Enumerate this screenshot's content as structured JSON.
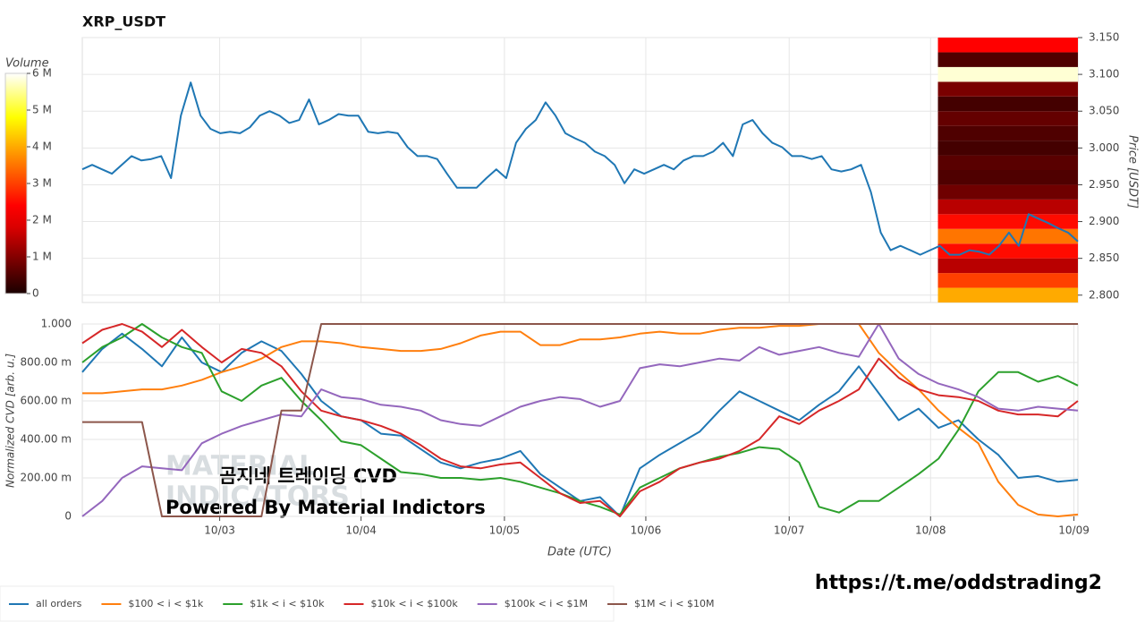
{
  "chart_data": [
    {
      "type": "line",
      "title": "XRP_USDT",
      "ylabel": "Price [USDT]",
      "color": "#1f77b4",
      "values": [
        2.971,
        2.977,
        2.971,
        2.965,
        2.977,
        2.989,
        2.983,
        2.985,
        2.989,
        2.959,
        3.044,
        3.089,
        3.044,
        3.026,
        3.02,
        3.022,
        3.02,
        3.028,
        3.044,
        3.05,
        3.044,
        3.034,
        3.038,
        3.066,
        3.032,
        3.038,
        3.046,
        3.044,
        3.044,
        3.022,
        3.02,
        3.022,
        3.02,
        3.001,
        2.989,
        2.989,
        2.985,
        2.965,
        2.946,
        2.946,
        2.946,
        2.959,
        2.971,
        2.959,
        3.007,
        3.026,
        3.038,
        3.062,
        3.044,
        3.02,
        3.013,
        3.007,
        2.995,
        2.989,
        2.977,
        2.952,
        2.971,
        2.965,
        2.971,
        2.977,
        2.971,
        2.983,
        2.989,
        2.989,
        2.995,
        3.007,
        2.989,
        3.032,
        3.038,
        3.02,
        3.007,
        3.001,
        2.989,
        2.989,
        2.985,
        2.989,
        2.971,
        2.968,
        2.971,
        2.977,
        2.94,
        2.885,
        2.861,
        2.867,
        2.861,
        2.855,
        2.861,
        2.867,
        2.855,
        2.855,
        2.861,
        2.859,
        2.855,
        2.867,
        2.885,
        2.867,
        2.91,
        2.904,
        2.898,
        2.891,
        2.885,
        2.873
      ],
      "xlim": [
        0,
        101
      ],
      "ylim": [
        2.79,
        3.15
      ],
      "yticks": [
        {
          "value": 2.8,
          "label": "2.800"
        },
        {
          "value": 2.85,
          "label": "2.850"
        },
        {
          "value": 2.9,
          "label": "2.900"
        },
        {
          "value": 2.95,
          "label": "2.950"
        },
        {
          "value": 3.0,
          "label": "3.000"
        },
        {
          "value": 3.05,
          "label": "3.050"
        },
        {
          "value": 3.1,
          "label": "3.100"
        },
        {
          "value": 3.15,
          "label": "3.150"
        }
      ],
      "grid": true,
      "volume_profile": {
        "title": "Volume",
        "xlim": [
          86.8,
          101
        ],
        "bins": [
          2.79,
          2.81,
          2.83,
          2.85,
          2.87,
          2.89,
          2.91,
          2.93,
          2.95,
          2.97,
          2.99,
          3.01,
          3.03,
          3.05,
          3.07,
          3.09,
          3.11,
          3.13,
          3.15
        ],
        "values": [
          4000000,
          3000000,
          1500000,
          2500000,
          3500000,
          2500000,
          1500000,
          800000,
          500000,
          600000,
          400000,
          500000,
          700000,
          400000,
          900000,
          5800000,
          500000,
          2300000
        ],
        "clim": [
          0,
          6000000
        ],
        "ticks": [
          0,
          {
            "value": 1000000,
            "label": "1 M"
          },
          {
            "value": 2000000,
            "label": "2 M"
          },
          {
            "value": 3000000,
            "label": "3 M"
          },
          {
            "value": 4000000,
            "label": "4 M"
          },
          {
            "value": 5000000,
            "label": "5 M"
          },
          {
            "value": 6000000,
            "label": "6 M"
          }
        ]
      }
    },
    {
      "type": "line",
      "xlabel": "Date (UTC)",
      "ylabel": "Normalized CVD [arb. u.]",
      "xlim": [
        0,
        50
      ],
      "ylim": [
        0,
        1
      ],
      "xticks": [
        {
          "value": 6.9,
          "label": "10/03"
        },
        {
          "value": 14.0,
          "label": "10/04"
        },
        {
          "value": 21.2,
          "label": "10/05"
        },
        {
          "value": 28.3,
          "label": "10/06"
        },
        {
          "value": 35.5,
          "label": "10/07"
        },
        {
          "value": 42.6,
          "label": "10/08"
        },
        {
          "value": 49.8,
          "label": "10/09"
        }
      ],
      "yticks": [
        0,
        {
          "value": 0.2,
          "label": "200.00 m"
        },
        {
          "value": 0.4,
          "label": "400.00 m"
        },
        {
          "value": 0.6,
          "label": "600.00 m"
        },
        {
          "value": 0.8,
          "label": "800.00 m"
        },
        {
          "value": 1,
          "label": "1.000"
        }
      ],
      "grid": true,
      "series": [
        {
          "name": "all orders",
          "color": "#1f77b4",
          "values": [
            0.75,
            0.87,
            0.95,
            0.87,
            0.78,
            0.93,
            0.8,
            0.75,
            0.85,
            0.91,
            0.86,
            0.74,
            0.6,
            0.52,
            0.5,
            0.43,
            0.42,
            0.35,
            0.28,
            0.25,
            0.28,
            0.3,
            0.34,
            0.22,
            0.15,
            0.08,
            0.1,
            0.0,
            0.25,
            0.32,
            0.38,
            0.44,
            0.55,
            0.65,
            0.6,
            0.55,
            0.5,
            0.58,
            0.65,
            0.78,
            0.64,
            0.5,
            0.56,
            0.46,
            0.5,
            0.4,
            0.32,
            0.2,
            0.21,
            0.18,
            0.19
          ]
        },
        {
          "name": "$100 < i < $1k",
          "color": "#ff7f0e",
          "values": [
            0.64,
            0.64,
            0.65,
            0.66,
            0.66,
            0.68,
            0.71,
            0.75,
            0.78,
            0.82,
            0.88,
            0.91,
            0.91,
            0.9,
            0.88,
            0.87,
            0.86,
            0.86,
            0.87,
            0.9,
            0.94,
            0.96,
            0.96,
            0.89,
            0.89,
            0.92,
            0.92,
            0.93,
            0.95,
            0.96,
            0.95,
            0.95,
            0.97,
            0.98,
            0.98,
            0.99,
            0.99,
            1.0,
            1.0,
            1.0,
            0.85,
            0.75,
            0.66,
            0.55,
            0.46,
            0.38,
            0.18,
            0.06,
            0.01,
            0.0,
            0.01
          ]
        },
        {
          "name": "$1k < i < $10k",
          "color": "#2ca02c",
          "values": [
            0.8,
            0.88,
            0.93,
            1.0,
            0.93,
            0.88,
            0.85,
            0.65,
            0.6,
            0.68,
            0.72,
            0.6,
            0.5,
            0.39,
            0.37,
            0.3,
            0.23,
            0.22,
            0.2,
            0.2,
            0.19,
            0.2,
            0.18,
            0.15,
            0.12,
            0.08,
            0.05,
            0.01,
            0.15,
            0.2,
            0.25,
            0.28,
            0.31,
            0.33,
            0.36,
            0.35,
            0.28,
            0.05,
            0.02,
            0.08,
            0.08,
            0.15,
            0.22,
            0.3,
            0.45,
            0.65,
            0.75,
            0.75,
            0.7,
            0.73,
            0.68
          ]
        },
        {
          "name": "$10k < i < $100k",
          "color": "#d62728",
          "values": [
            0.9,
            0.97,
            1.0,
            0.96,
            0.88,
            0.97,
            0.88,
            0.8,
            0.87,
            0.85,
            0.78,
            0.65,
            0.55,
            0.52,
            0.5,
            0.47,
            0.43,
            0.37,
            0.3,
            0.26,
            0.25,
            0.27,
            0.28,
            0.2,
            0.12,
            0.07,
            0.08,
            0.0,
            0.13,
            0.18,
            0.25,
            0.28,
            0.3,
            0.34,
            0.4,
            0.52,
            0.48,
            0.55,
            0.6,
            0.66,
            0.82,
            0.72,
            0.66,
            0.63,
            0.62,
            0.6,
            0.55,
            0.53,
            0.53,
            0.52,
            0.6
          ]
        },
        {
          "name": "$100k < i < $1M",
          "color": "#9467bd",
          "values": [
            0.0,
            0.08,
            0.2,
            0.26,
            0.25,
            0.24,
            0.38,
            0.43,
            0.47,
            0.5,
            0.53,
            0.52,
            0.66,
            0.62,
            0.61,
            0.58,
            0.57,
            0.55,
            0.5,
            0.48,
            0.47,
            0.52,
            0.57,
            0.6,
            0.62,
            0.61,
            0.57,
            0.6,
            0.77,
            0.79,
            0.78,
            0.8,
            0.82,
            0.81,
            0.88,
            0.84,
            0.86,
            0.88,
            0.85,
            0.83,
            1.0,
            0.82,
            0.74,
            0.69,
            0.66,
            0.62,
            0.56,
            0.55,
            0.57,
            0.56,
            0.55
          ]
        },
        {
          "name": "$1M < i < $10M",
          "color": "#8c564b",
          "values": [
            0.49,
            0.49,
            0.49,
            0.49,
            0.0,
            0.0,
            0.0,
            0.0,
            0.0,
            0.0,
            0.55,
            0.55,
            1.0,
            1.0,
            1.0,
            1.0,
            1.0,
            1.0,
            1.0,
            1.0,
            1.0,
            1.0,
            1.0,
            1.0,
            1.0,
            1.0,
            1.0,
            1.0,
            1.0,
            1.0,
            1.0,
            1.0,
            1.0,
            1.0,
            1.0,
            1.0,
            1.0,
            1.0,
            1.0,
            1.0,
            1.0,
            1.0,
            1.0,
            1.0,
            1.0,
            1.0,
            1.0,
            1.0,
            1.0,
            1.0,
            1.0
          ]
        }
      ]
    }
  ],
  "annotations": {
    "watermark": [
      "MATERIAL",
      "INDICATORS"
    ],
    "caption": "곰지네 트레이딩 CVD",
    "credit": "Powered By Material Indictors",
    "link": "https://t.me/oddstrading2"
  }
}
